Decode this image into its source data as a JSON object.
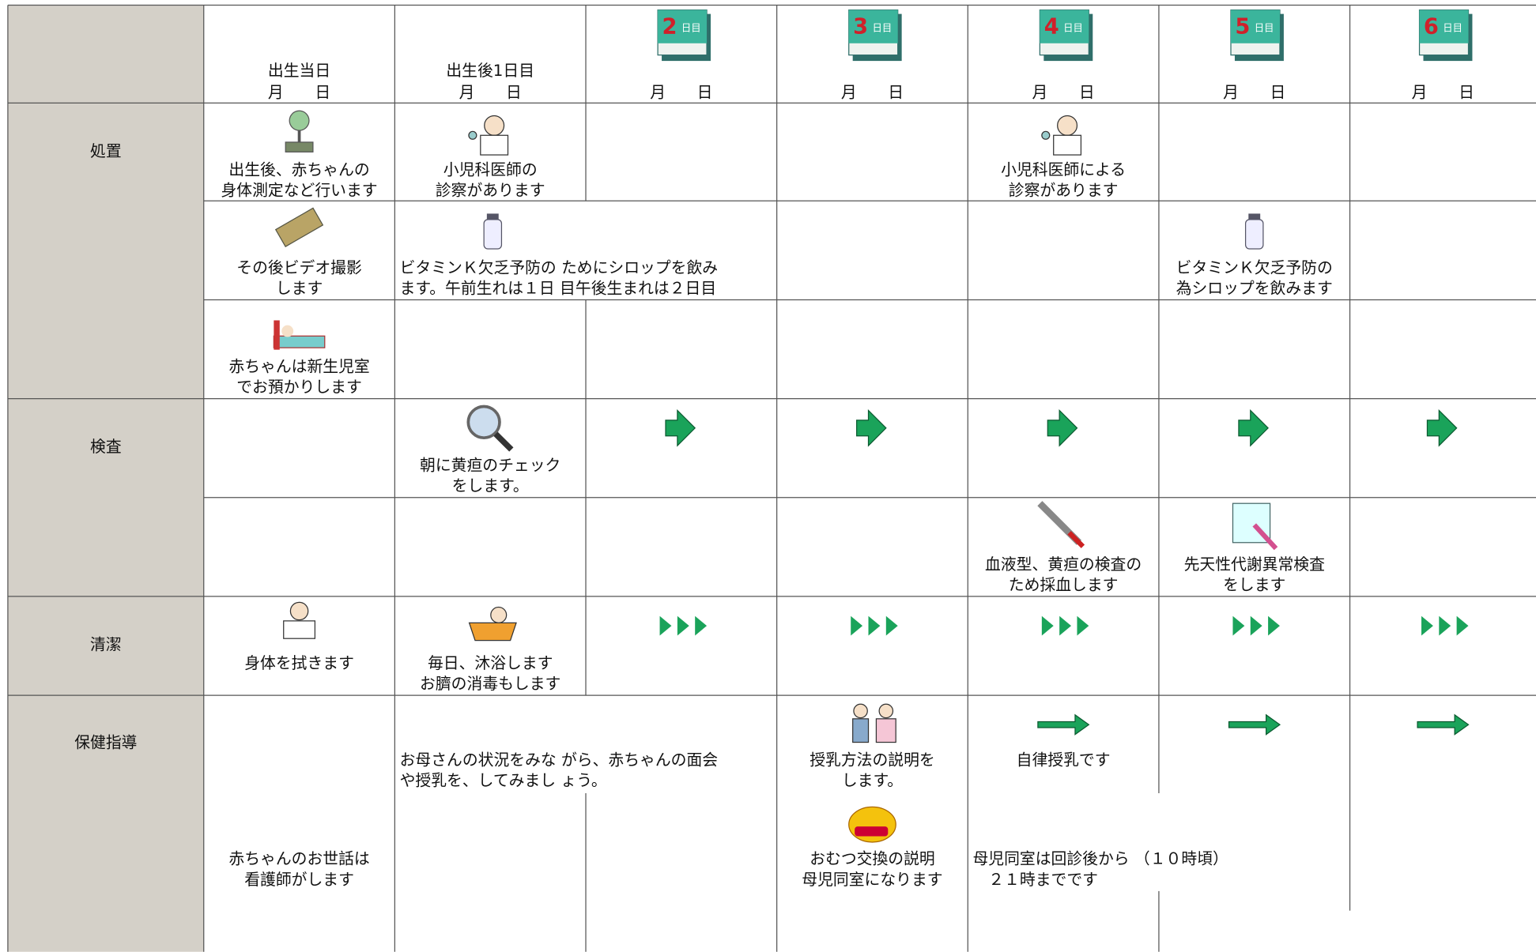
{
  "header": {
    "cells": [
      {
        "label": "出生当日",
        "date": "月　　日"
      },
      {
        "label": "出生後1日目",
        "date": "月　　日"
      },
      {
        "badge": "2",
        "badge_unit": "日目",
        "date": "月　　日"
      },
      {
        "badge": "3",
        "badge_unit": "日目",
        "date": "月　　日"
      },
      {
        "badge": "4",
        "badge_unit": "日目",
        "date": "月　　日"
      },
      {
        "badge": "5",
        "badge_unit": "日目",
        "date": "月　　日"
      },
      {
        "badge": "6",
        "badge_unit": "日目",
        "date": "月　　日"
      }
    ]
  },
  "categories": [
    "処置",
    "検査",
    "清潔",
    "保健指導"
  ],
  "cells": [
    {
      "lines": [
        "出生後、赤ちゃんの",
        "身体測定など行います"
      ]
    },
    {
      "lines": [
        "小児科医師の",
        "診察があります"
      ]
    },
    {
      "lines": [
        "小児科医師による",
        "診察があります"
      ]
    },
    {
      "lines": [
        "その後ビデオ撮影",
        "します"
      ]
    },
    {
      "lines": [
        "ビタミンＫ欠乏予防の ためにシロップを飲み",
        "ます。午前生れは１日 目午後生まれは２日目"
      ]
    },
    {
      "lines": [
        "ビタミンＫ欠乏予防の",
        "為シロップを飲みます"
      ]
    },
    {
      "lines": [
        "赤ちゃんは新生児室",
        "でお預かりします"
      ]
    },
    {
      "lines": [
        "朝に黄疸のチェック",
        "をします。"
      ]
    },
    {
      "lines": [
        "血液型、黄疸の検査の",
        "ため採血します"
      ]
    },
    {
      "lines": [
        "先天性代謝異常検査",
        "をします"
      ]
    },
    {
      "lines": [
        "身体を拭きます"
      ]
    },
    {
      "lines": [
        "毎日、沐浴します",
        "お臍の消毒もします"
      ]
    },
    {
      "lines": [
        "赤ちゃんのお世話は",
        "看護師がします"
      ]
    },
    {
      "lines": [
        "お母さんの状況をみな がら、赤ちゃんの面会",
        "や授乳を、してみまし ょう。"
      ]
    },
    {
      "lines": [
        "授乳方法の説明を",
        "します。"
      ]
    },
    {
      "lines": [
        "おむつ交換の説明",
        "母児同室になります"
      ]
    },
    {
      "lines": [
        "自律授乳です"
      ]
    },
    {
      "lines": [
        "母児同室は回診後から （１０時頃）",
        "　２１時までです"
      ]
    }
  ]
}
